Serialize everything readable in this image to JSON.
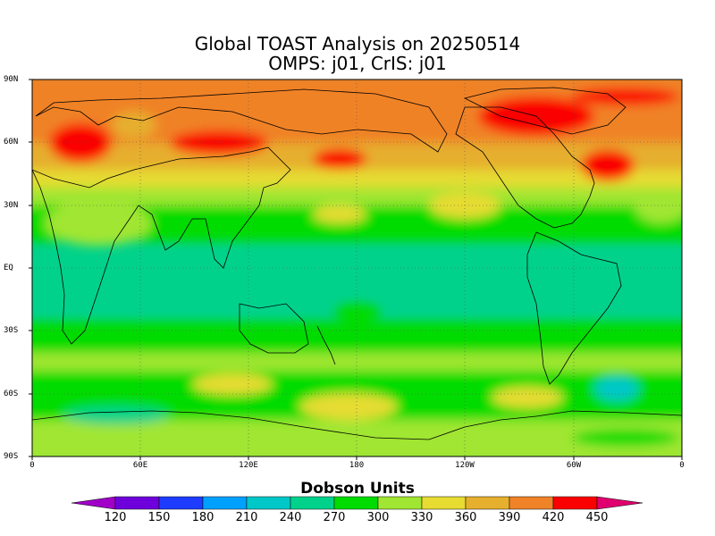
{
  "title": {
    "line1": "Global TOAST Analysis on 20250514",
    "line2": "OMPS: j01, CrIS: j01"
  },
  "axes": {
    "lat_labels": [
      "90N",
      "60N",
      "30N",
      "EQ",
      "30S",
      "60S",
      "90S"
    ],
    "lon_labels": [
      "0",
      "60E",
      "120E",
      "180",
      "120W",
      "60W",
      "0"
    ]
  },
  "legend": {
    "title": "Dobson Units",
    "ticks": [
      "120",
      "150",
      "180",
      "210",
      "240",
      "270",
      "300",
      "330",
      "360",
      "390",
      "420",
      "450"
    ],
    "colors": [
      "#a000c8",
      "#6e00dc",
      "#1e3cff",
      "#00a0ff",
      "#00c8c8",
      "#00d28c",
      "#00dc00",
      "#a0e632",
      "#e6dc32",
      "#e6af2d",
      "#f08228",
      "#fa0000",
      "#e00070"
    ]
  }
}
